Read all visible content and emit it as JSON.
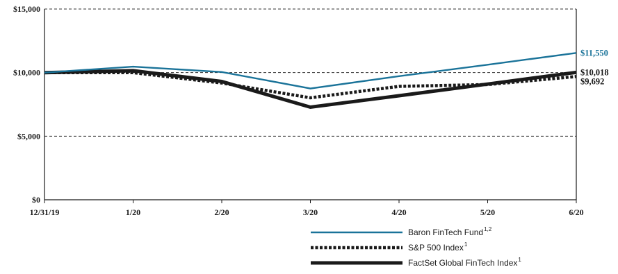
{
  "chart_data": {
    "type": "line",
    "categories": [
      "12/31/19",
      "1/20",
      "2/20",
      "3/20",
      "4/20",
      "5/20",
      "6/20"
    ],
    "y_ticks": [
      "$0",
      "$5,000",
      "$10,000",
      "$15,000"
    ],
    "ylim": [
      0,
      15000
    ],
    "grid": "horizontal dashed",
    "legend_position": "bottom-right",
    "series": [
      {
        "name": "Baron FinTech Fund",
        "superscript": "1,2",
        "color": "#1a7399",
        "style": "solid-thin",
        "values": [
          10000,
          10470,
          10050,
          8750,
          9720,
          10620,
          11550
        ],
        "end_label": "$11,550"
      },
      {
        "name": "S&P 500 Index",
        "superscript": "1",
        "color": "#1a1a1a",
        "style": "dotted-thick",
        "values": [
          10000,
          10000,
          9180,
          8020,
          8920,
          9060,
          9692
        ],
        "end_label": "$9,692"
      },
      {
        "name": "FactSet Global FinTech Index",
        "superscript": "1",
        "color": "#1a1a1a",
        "style": "solid-thick",
        "values": [
          10000,
          10150,
          9300,
          7280,
          8180,
          9100,
          10018
        ],
        "end_label": "$10,018"
      }
    ]
  }
}
